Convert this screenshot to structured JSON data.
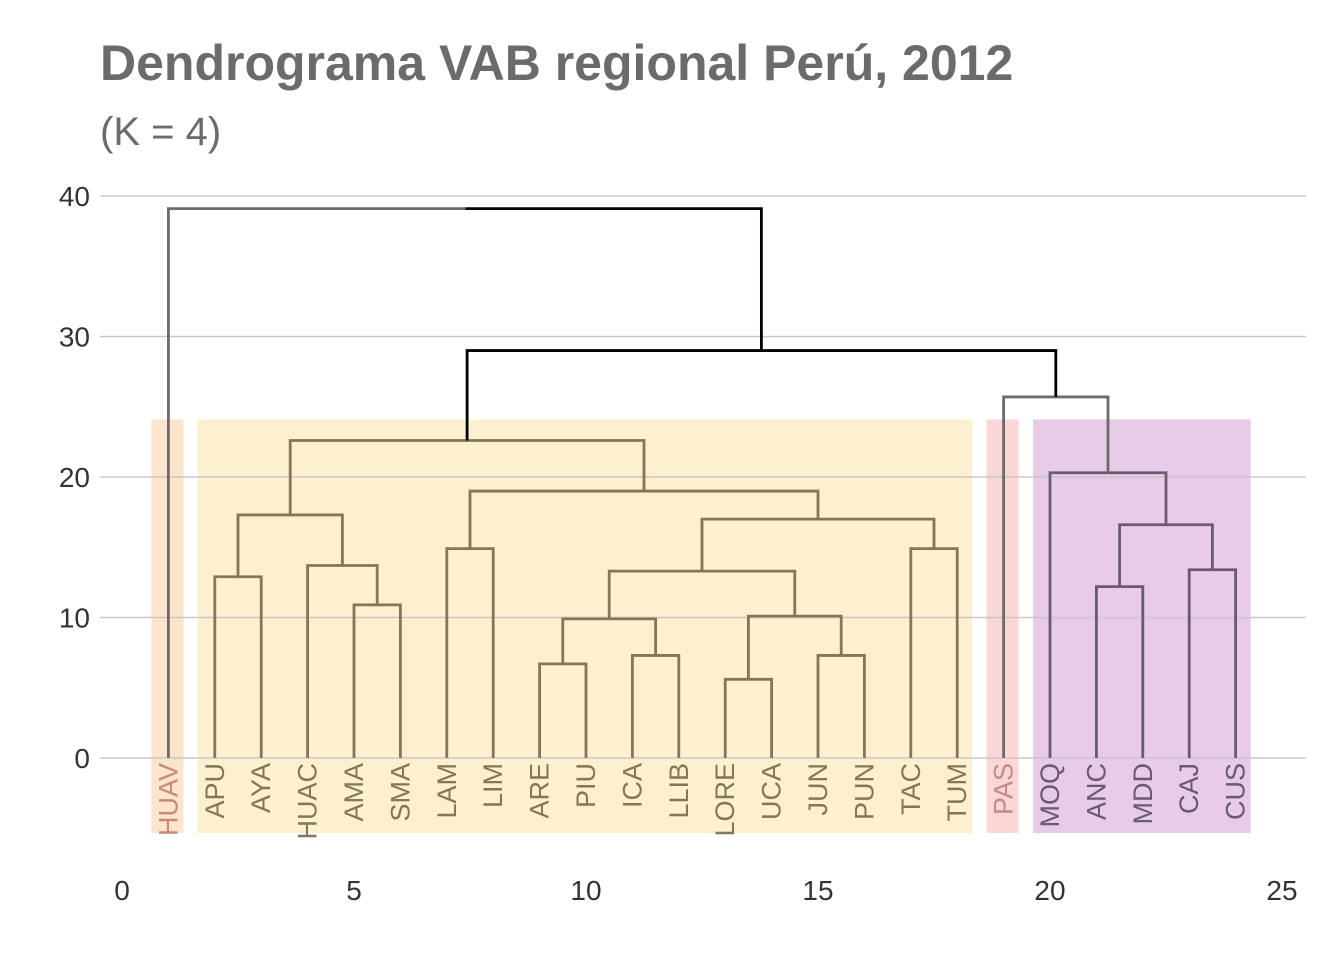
{
  "chart_data": {
    "type": "dendrogram",
    "title": "Dendrograma VAB regional Perú, 2012",
    "subtitle": "(K = 4)",
    "xlim": [
      0,
      25
    ],
    "ylim": [
      -5.5,
      40
    ],
    "x_ticks": [
      0,
      5,
      10,
      15,
      20,
      25
    ],
    "y_ticks": [
      0,
      10,
      20,
      30,
      40
    ],
    "grid": "horizontal",
    "leaves": [
      {
        "label": "HUAV",
        "x": 1,
        "cluster": 0
      },
      {
        "label": "APU",
        "x": 2,
        "cluster": 1
      },
      {
        "label": "AYA",
        "x": 3,
        "cluster": 1
      },
      {
        "label": "HUAC",
        "x": 4,
        "cluster": 1
      },
      {
        "label": "AMA",
        "x": 5,
        "cluster": 1
      },
      {
        "label": "SMA",
        "x": 6,
        "cluster": 1
      },
      {
        "label": "LAM",
        "x": 7,
        "cluster": 1
      },
      {
        "label": "LIM",
        "x": 8,
        "cluster": 1
      },
      {
        "label": "ARE",
        "x": 9,
        "cluster": 1
      },
      {
        "label": "PIU",
        "x": 10,
        "cluster": 1
      },
      {
        "label": "ICA",
        "x": 11,
        "cluster": 1
      },
      {
        "label": "LLIB",
        "x": 12,
        "cluster": 1
      },
      {
        "label": "LORE",
        "x": 13,
        "cluster": 1
      },
      {
        "label": "UCA",
        "x": 14,
        "cluster": 1
      },
      {
        "label": "JUN",
        "x": 15,
        "cluster": 1
      },
      {
        "label": "PUN",
        "x": 16,
        "cluster": 1
      },
      {
        "label": "TAC",
        "x": 17,
        "cluster": 1
      },
      {
        "label": "TUM",
        "x": 18,
        "cluster": 1
      },
      {
        "label": "PAS",
        "x": 19,
        "cluster": 2
      },
      {
        "label": "MOQ",
        "x": 20,
        "cluster": 3
      },
      {
        "label": "ANC",
        "x": 21,
        "cluster": 3
      },
      {
        "label": "MDD",
        "x": 22,
        "cluster": 3
      },
      {
        "label": "CAJ",
        "x": 23,
        "cluster": 3
      },
      {
        "label": "CUS",
        "x": 24,
        "cluster": 3
      }
    ],
    "merges": [
      {
        "name": "m-apu-aya",
        "x1": 2,
        "y1": 0,
        "x2": 3,
        "y2": 0,
        "height": 12.9,
        "cluster": 1
      },
      {
        "name": "m-sma-ama",
        "x1": 5,
        "y1": 0,
        "x2": 6,
        "y2": 0,
        "height": 10.9,
        "cluster": 1
      },
      {
        "name": "m-huac",
        "x1": 4,
        "y1": 0,
        "x2": 5.5,
        "y2": 10.9,
        "height": 13.7,
        "cluster": 1
      },
      {
        "name": "m-apu-huac",
        "x1": 2.5,
        "y1": 12.9,
        "x2": 4.75,
        "y2": 13.7,
        "height": 17.3,
        "cluster": 1
      },
      {
        "name": "m-lam-lim",
        "x1": 7,
        "y1": 0,
        "x2": 8,
        "y2": 0,
        "height": 14.9,
        "cluster": 1
      },
      {
        "name": "m-are-piu",
        "x1": 9,
        "y1": 0,
        "x2": 10,
        "y2": 0,
        "height": 6.7,
        "cluster": 1
      },
      {
        "name": "m-ica-llib",
        "x1": 11,
        "y1": 0,
        "x2": 12,
        "y2": 0,
        "height": 7.3,
        "cluster": 1
      },
      {
        "name": "m-are-ica",
        "x1": 9.5,
        "y1": 6.7,
        "x2": 11.5,
        "y2": 7.3,
        "height": 9.9,
        "cluster": 1
      },
      {
        "name": "m-lore-uca",
        "x1": 13,
        "y1": 0,
        "x2": 14,
        "y2": 0,
        "height": 5.6,
        "cluster": 1
      },
      {
        "name": "m-jun-pun",
        "x1": 15,
        "y1": 0,
        "x2": 16,
        "y2": 0,
        "height": 7.3,
        "cluster": 1
      },
      {
        "name": "m-lore-jun",
        "x1": 13.5,
        "y1": 5.6,
        "x2": 15.5,
        "y2": 7.3,
        "height": 10.1,
        "cluster": 1
      },
      {
        "name": "m-south",
        "x1": 10.5,
        "y1": 9.9,
        "x2": 14.5,
        "y2": 10.1,
        "height": 13.3,
        "cluster": 1
      },
      {
        "name": "m-tac-tum",
        "x1": 17,
        "y1": 0,
        "x2": 18,
        "y2": 0,
        "height": 14.9,
        "cluster": 1
      },
      {
        "name": "m-south-tac",
        "x1": 12.5,
        "y1": 13.3,
        "x2": 17.5,
        "y2": 14.9,
        "height": 17.0,
        "cluster": 1
      },
      {
        "name": "m-lam-south",
        "x1": 7.5,
        "y1": 14.9,
        "x2": 15,
        "y2": 17.0,
        "height": 19.0,
        "cluster": 1
      },
      {
        "name": "m-cluster-1",
        "x1": 3.625,
        "y1": 17.3,
        "x2": 11.25,
        "y2": 19.0,
        "height": 22.6,
        "cluster": 1
      },
      {
        "name": "m-anc-mdd",
        "x1": 21,
        "y1": 0,
        "x2": 22,
        "y2": 0,
        "height": 12.2,
        "cluster": 3
      },
      {
        "name": "m-caj-cus",
        "x1": 23,
        "y1": 0,
        "x2": 24,
        "y2": 0,
        "height": 13.4,
        "cluster": 3
      },
      {
        "name": "m-anc-caj",
        "x1": 21.5,
        "y1": 12.2,
        "x2": 23.5,
        "y2": 13.4,
        "height": 16.6,
        "cluster": 3
      },
      {
        "name": "m-cluster-3",
        "x1": 20,
        "y1": 0,
        "x2": 22.5,
        "y2": 16.6,
        "height": 20.3,
        "cluster": 3
      },
      {
        "name": "m-pas-3",
        "x1": 19,
        "y1": 0,
        "x2": 21.25,
        "y2": 20.3,
        "height": 25.7,
        "cluster": 4
      },
      {
        "name": "m-1-pas",
        "x1": 7.4375,
        "y1": 22.6,
        "x2": 20.125,
        "y2": 25.7,
        "height": 29.0,
        "cluster": 5
      },
      {
        "name": "m-root",
        "x1": 1,
        "y1": 0,
        "x2": 13.78,
        "y2": 29.0,
        "height": 39.1,
        "cluster": 6
      }
    ],
    "cluster_boxes": [
      {
        "cluster": 0,
        "from": 1,
        "to": 1,
        "color": "#fde4cc"
      },
      {
        "cluster": 1,
        "from": 2,
        "to": 18,
        "color": "#fdf0d0"
      },
      {
        "cluster": 2,
        "from": 19,
        "to": 19,
        "color": "#fbd6d6"
      },
      {
        "cluster": 3,
        "from": 20,
        "to": 24,
        "color": "#e8cbe8"
      }
    ],
    "colors": {
      "cluster_line": "#6b6b6b",
      "cluster_1_line": "#857559",
      "cluster_3_line": "#6a5a6e",
      "top_line": "#000000",
      "leaf_text_0": "#c48a78",
      "leaf_text_1": "#857559",
      "leaf_text_2": "#c48a8a",
      "leaf_text_3": "#6a5a6e",
      "grid": "#c8c8c8"
    }
  }
}
